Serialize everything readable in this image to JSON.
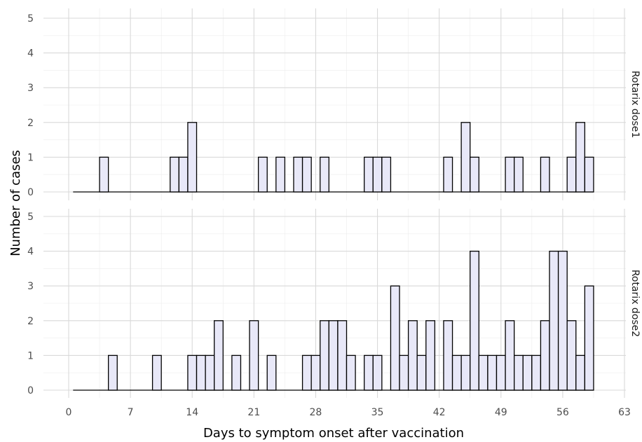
{
  "chart_data": {
    "type": "bar",
    "xlabel": "Days to symptom onset after vaccination",
    "ylabel": "Number of cases",
    "xlim": [
      0,
      63
    ],
    "ylim": [
      0,
      5
    ],
    "x_ticks": [
      "0",
      "7",
      "14",
      "21",
      "28",
      "35",
      "42",
      "49",
      "56",
      "63"
    ],
    "y_ticks": [
      "0",
      "1",
      "2",
      "3",
      "4",
      "5"
    ],
    "grid": true,
    "bar_fill": "#e8e8f8",
    "bar_stroke": "#000000",
    "facets": [
      {
        "label": "Rotarix dose1",
        "x": [
          4,
          12,
          13,
          14,
          22,
          24,
          26,
          27,
          29,
          34,
          35,
          36,
          43,
          45,
          46,
          50,
          51,
          54,
          57,
          58,
          59
        ],
        "values": [
          1,
          1,
          1,
          2,
          1,
          1,
          1,
          1,
          1,
          1,
          1,
          1,
          1,
          2,
          1,
          1,
          1,
          1,
          1,
          2,
          1
        ]
      },
      {
        "label": "Rotarix dose2",
        "x": [
          5,
          10,
          14,
          15,
          16,
          17,
          19,
          21,
          23,
          27,
          28,
          29,
          30,
          31,
          32,
          34,
          35,
          37,
          38,
          39,
          40,
          41,
          43,
          44,
          45,
          46,
          47,
          48,
          49,
          50,
          51,
          52,
          53,
          54,
          55,
          56,
          57,
          58,
          59
        ],
        "values": [
          1,
          1,
          1,
          1,
          1,
          2,
          1,
          2,
          1,
          1,
          1,
          2,
          2,
          2,
          1,
          1,
          1,
          3,
          1,
          2,
          1,
          2,
          2,
          1,
          1,
          4,
          1,
          1,
          1,
          2,
          1,
          1,
          1,
          2,
          4,
          4,
          2,
          1,
          3
        ]
      }
    ]
  }
}
